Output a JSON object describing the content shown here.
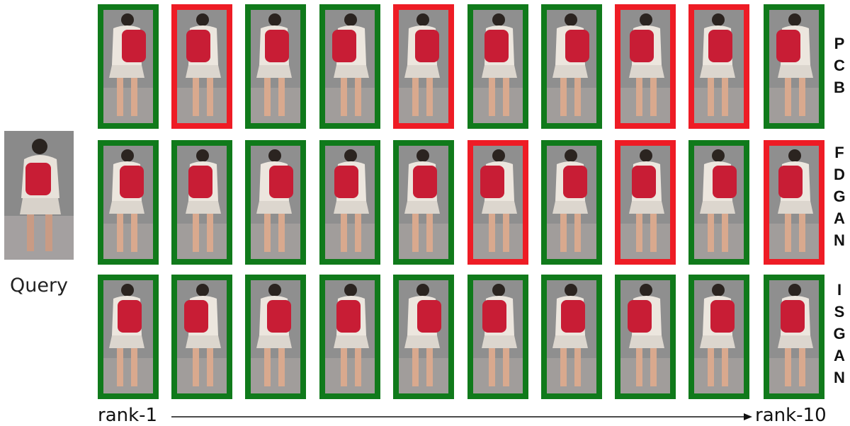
{
  "query": {
    "label": "Query"
  },
  "methods": [
    {
      "letters": [
        "P",
        "C",
        "B"
      ],
      "results": [
        "correct",
        "wrong",
        "correct",
        "correct",
        "wrong",
        "correct",
        "correct",
        "wrong",
        "wrong",
        "correct"
      ]
    },
    {
      "letters": [
        "F",
        "D",
        "G",
        "A",
        "N"
      ],
      "results": [
        "correct",
        "correct",
        "correct",
        "correct",
        "correct",
        "wrong",
        "correct",
        "wrong",
        "correct",
        "wrong"
      ]
    },
    {
      "letters": [
        "I",
        "S",
        "G",
        "A",
        "N"
      ],
      "results": [
        "correct",
        "correct",
        "correct",
        "correct",
        "correct",
        "correct",
        "correct",
        "correct",
        "correct",
        "correct"
      ]
    }
  ],
  "axis": {
    "start_label": "rank-1",
    "end_label": "rank-10"
  },
  "colors": {
    "correct": "#107a1b",
    "wrong": "#ee1c25",
    "backpack": "#c81d35",
    "shirt": "#ece6de",
    "skin": "#d9a98e",
    "pavement": "#8f8f8f"
  }
}
